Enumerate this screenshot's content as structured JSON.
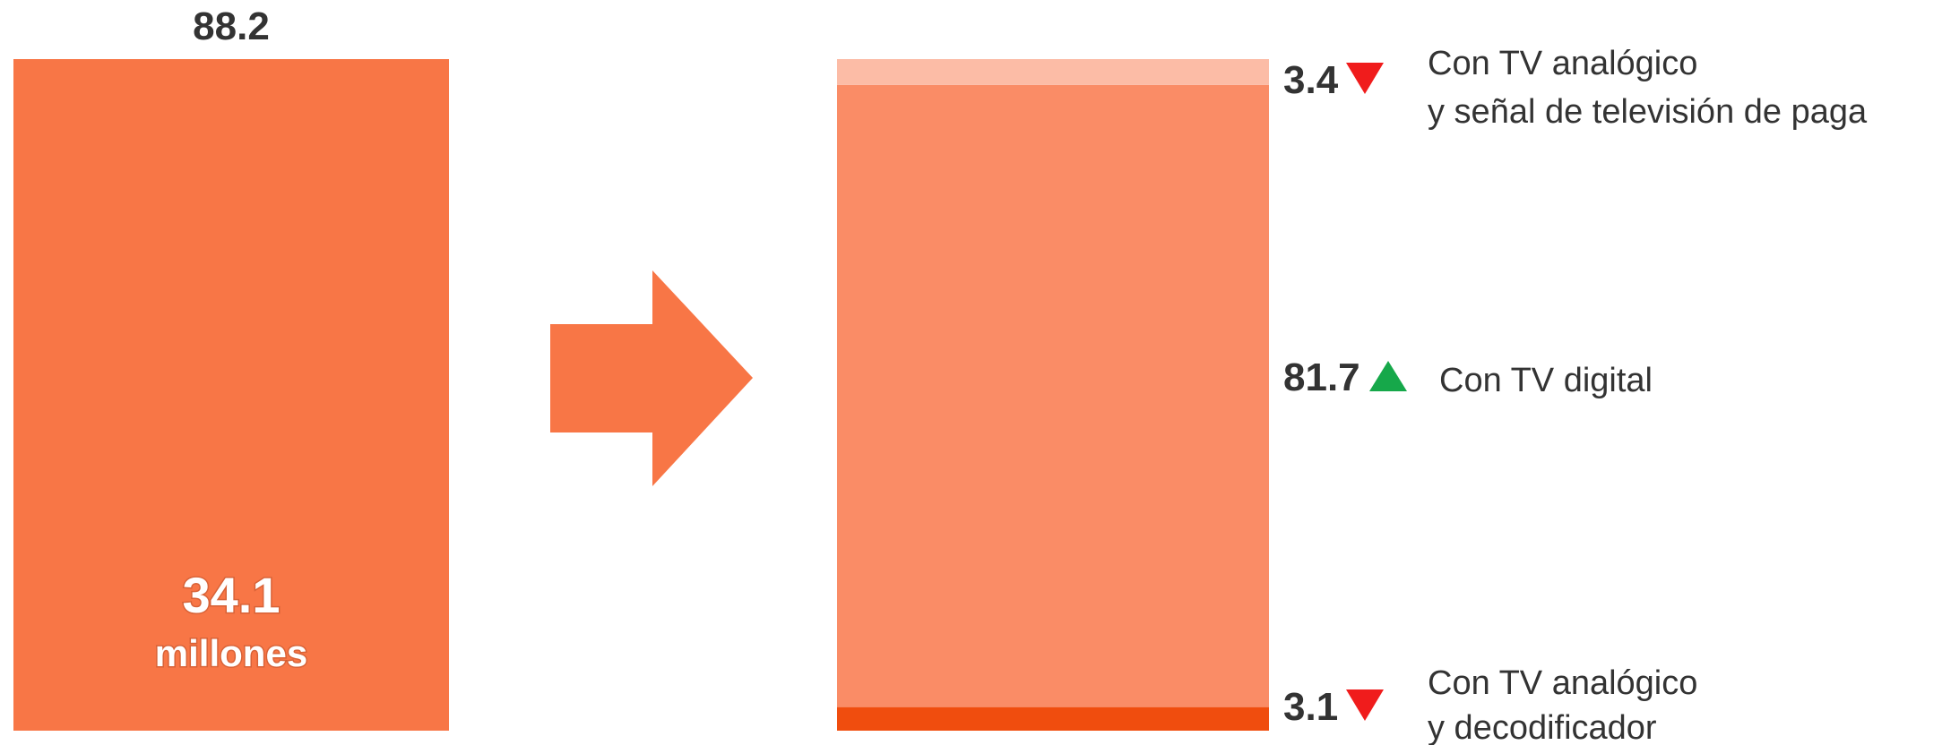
{
  "chart_data": {
    "type": "bar",
    "total_bar": {
      "value": 88.2,
      "inner_value": "34.1",
      "inner_unit": "millones",
      "color": "#F87646"
    },
    "segments": [
      {
        "value": 3.1,
        "label_line1": "Con TV analógico",
        "label_line2": "y decodificador",
        "trend": "down",
        "color": "#F04D0E"
      },
      {
        "value": 81.7,
        "label_line1": "Con TV digital",
        "label_line2": "",
        "trend": "up",
        "color": "#FA8C66"
      },
      {
        "value": 3.4,
        "label_line1": "Con TV analógico",
        "label_line2": "y señal de televisión de paga",
        "trend": "down",
        "color": "#FCBCA6"
      }
    ],
    "arrow_color": "#F87646",
    "trend_colors": {
      "up": "#16A84A",
      "down": "#F01C1C"
    }
  }
}
